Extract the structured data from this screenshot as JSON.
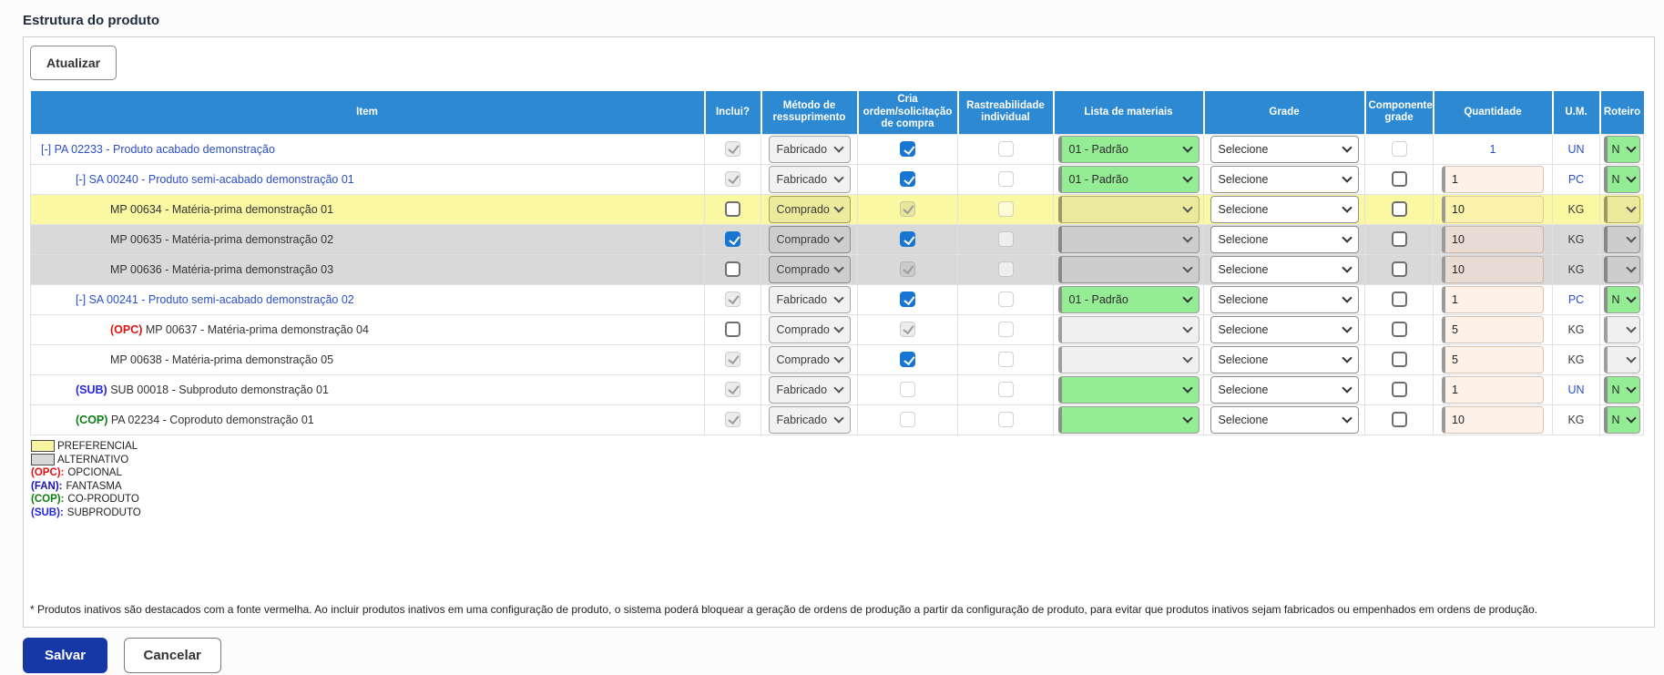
{
  "page_title": "Estrutura do produto",
  "toolbar": {
    "refresh_label": "Atualizar"
  },
  "table": {
    "headers": {
      "item": "Item",
      "inclui": "Inclui?",
      "metodo": "Método de ressuprimento",
      "cria": "Cria ordem/solicitação de compra",
      "rastreabilidade": "Rastreabilidade individual",
      "lista": "Lista de materiais",
      "grade": "Grade",
      "componente": "Componente grade",
      "quantidade": "Quantidade",
      "um": "U.M.",
      "roteiro": "Roteiro"
    },
    "rows": [
      {
        "bg": "white",
        "item": {
          "prefix": "[-]",
          "prefix_class": "pre-link",
          "text": "PA 02233 - Produto acabado demonstração",
          "link": true,
          "indent": 0
        },
        "inclui": "dis-ch",
        "metodo": "Fabricado",
        "cria": "ch",
        "rastreabilidade": "dis-un",
        "lista": {
          "style": "green",
          "text": "01 - Padrão"
        },
        "grade": "Selecione",
        "componente": "dis-un",
        "quantidade": {
          "value": "1",
          "static": true
        },
        "um": "UN",
        "um_link": true,
        "roteiro": {
          "style": "green",
          "text": "N"
        }
      },
      {
        "bg": "white",
        "item": {
          "prefix": "[-]",
          "prefix_class": "pre-link",
          "text": "SA 00240 - Produto semi-acabado demonstração 01",
          "link": true,
          "indent": 1
        },
        "inclui": "dis-ch",
        "metodo": "Fabricado",
        "cria": "ch",
        "rastreabilidade": "dis-un",
        "lista": {
          "style": "green",
          "text": "01 - Padrão"
        },
        "grade": "Selecione",
        "componente": "un",
        "quantidade": {
          "value": "1",
          "static": false
        },
        "um": "PC",
        "um_link": true,
        "roteiro": {
          "style": "green",
          "text": "N"
        }
      },
      {
        "bg": "yellow",
        "item": {
          "prefix": "",
          "prefix_class": "",
          "text": "MP 00634 - Matéria-prima demonstração 01",
          "link": false,
          "indent": 2
        },
        "inclui": "un",
        "metodo": "Comprado",
        "cria": "dis-ch",
        "rastreabilidade": "dis-un",
        "lista": {
          "style": "disabled",
          "text": ""
        },
        "grade": "Selecione",
        "componente": "un",
        "quantidade": {
          "value": "10",
          "static": false
        },
        "um": "KG",
        "um_link": false,
        "roteiro": {
          "style": "disabled",
          "text": ""
        }
      },
      {
        "bg": "gray",
        "item": {
          "prefix": "",
          "prefix_class": "",
          "text": "MP 00635 - Matéria-prima demonstração 02",
          "link": false,
          "indent": 2
        },
        "inclui": "ch",
        "metodo": "Comprado",
        "cria": "ch",
        "rastreabilidade": "dis-un",
        "lista": {
          "style": "disabled",
          "text": ""
        },
        "grade": "Selecione",
        "componente": "un",
        "quantidade": {
          "value": "10",
          "static": false
        },
        "um": "KG",
        "um_link": false,
        "roteiro": {
          "style": "disabled",
          "text": ""
        }
      },
      {
        "bg": "gray",
        "item": {
          "prefix": "",
          "prefix_class": "",
          "text": "MP 00636 - Matéria-prima demonstração 03",
          "link": false,
          "indent": 2
        },
        "inclui": "un",
        "metodo": "Comprado",
        "cria": "dis-ch",
        "rastreabilidade": "dis-un",
        "lista": {
          "style": "disabled",
          "text": ""
        },
        "grade": "Selecione",
        "componente": "un",
        "quantidade": {
          "value": "10",
          "static": false
        },
        "um": "KG",
        "um_link": false,
        "roteiro": {
          "style": "disabled",
          "text": ""
        }
      },
      {
        "bg": "white",
        "item": {
          "prefix": "[-]",
          "prefix_class": "pre-link",
          "text": "SA 00241 - Produto semi-acabado demonstração 02",
          "link": true,
          "indent": 1
        },
        "inclui": "dis-ch",
        "metodo": "Fabricado",
        "cria": "ch",
        "rastreabilidade": "dis-un",
        "lista": {
          "style": "green",
          "text": "01 - Padrão"
        },
        "grade": "Selecione",
        "componente": "un",
        "quantidade": {
          "value": "1",
          "static": false
        },
        "um": "PC",
        "um_link": true,
        "roteiro": {
          "style": "green",
          "text": "N"
        }
      },
      {
        "bg": "white",
        "item": {
          "prefix": "(OPC)",
          "prefix_class": "pre-red",
          "text": "MP 00637 - Matéria-prima demonstração 04",
          "link": false,
          "indent": 2
        },
        "inclui": "un",
        "metodo": "Comprado",
        "cria": "dis-ch",
        "rastreabilidade": "dis-un",
        "lista": {
          "style": "disabled",
          "text": ""
        },
        "grade": "Selecione",
        "componente": "un",
        "quantidade": {
          "value": "5",
          "static": false
        },
        "um": "KG",
        "um_link": false,
        "roteiro": {
          "style": "disabled",
          "text": ""
        }
      },
      {
        "bg": "white",
        "item": {
          "prefix": "",
          "prefix_class": "",
          "text": "MP 00638 - Matéria-prima demonstração 05",
          "link": false,
          "indent": 2
        },
        "inclui": "dis-ch",
        "metodo": "Comprado",
        "cria": "ch",
        "rastreabilidade": "dis-un",
        "lista": {
          "style": "disabled",
          "text": ""
        },
        "grade": "Selecione",
        "componente": "un",
        "quantidade": {
          "value": "5",
          "static": false
        },
        "um": "KG",
        "um_link": false,
        "roteiro": {
          "style": "disabled",
          "text": ""
        }
      },
      {
        "bg": "white",
        "item": {
          "prefix": "(SUB)",
          "prefix_class": "pre-blue",
          "text": "SUB 00018 - Subproduto demonstração 01",
          "link": false,
          "indent": 1
        },
        "inclui": "dis-ch",
        "metodo": "Fabricado",
        "cria": "dis-un",
        "rastreabilidade": "dis-un",
        "lista": {
          "style": "green",
          "text": ""
        },
        "grade": "Selecione",
        "componente": "un",
        "quantidade": {
          "value": "1",
          "static": false
        },
        "um": "UN",
        "um_link": true,
        "roteiro": {
          "style": "green",
          "text": "N"
        }
      },
      {
        "bg": "white",
        "item": {
          "prefix": "(COP)",
          "prefix_class": "pre-green",
          "text": "PA 02234 - Coproduto demonstração 01",
          "link": false,
          "indent": 1
        },
        "inclui": "dis-ch",
        "metodo": "Fabricado",
        "cria": "dis-un",
        "rastreabilidade": "dis-un",
        "lista": {
          "style": "green",
          "text": ""
        },
        "grade": "Selecione",
        "componente": "un",
        "quantidade": {
          "value": "10",
          "static": false
        },
        "um": "KG",
        "um_link": false,
        "roteiro": {
          "style": "green",
          "text": "N"
        }
      }
    ]
  },
  "legend": {
    "swatches": [
      {
        "label": "PREFERENCIAL",
        "color": "#f8f5a0"
      },
      {
        "label": "ALTERNATIVO",
        "color": "#d8d8d8"
      }
    ],
    "tags": [
      {
        "tag": "(OPC):",
        "label": "OPCIONAL",
        "color": "#e01212"
      },
      {
        "tag": "(FAN):",
        "label": "FANTASMA",
        "color": "#1414b8"
      },
      {
        "tag": "(COP):",
        "label": "CO-PRODUTO",
        "color": "#0d7d12"
      },
      {
        "tag": "(SUB):",
        "label": "SUBPRODUTO",
        "color": "#2525e6"
      }
    ]
  },
  "footnote": "* Produtos inativos são destacados com a fonte vermelha. Ao incluir produtos inativos em uma configuração de produto, o sistema poderá bloquear a geração de ordens de produção a partir da configuração de produto, para evitar que produtos inativos sejam fabricados ou empenhados em ordens de produção.",
  "actions": {
    "save_label": "Salvar",
    "cancel_label": "Cancelar"
  },
  "colors": {
    "header_blue": "#2e89d3",
    "link_blue": "#2b4ec9",
    "row_yellow": "#faf8a3",
    "row_gray": "#d9d9d9",
    "checkbox_blue": "#1876d2",
    "select_green": "#94ec94",
    "quantity_bg": "#fdf1e8",
    "save_blue": "#1638a6"
  }
}
